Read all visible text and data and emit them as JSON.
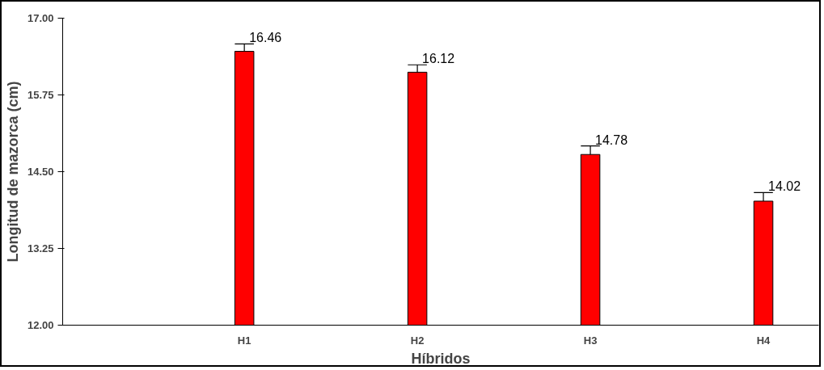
{
  "chart_data": {
    "type": "bar",
    "xlabel": "Híbridos",
    "ylabel": "Longitud de mazorca (cm)",
    "categories": [
      "H1",
      "H2",
      "H3",
      "H4"
    ],
    "values": [
      16.46,
      16.12,
      14.78,
      14.02
    ],
    "errors": [
      [
        16.46,
        16.58
      ],
      [
        16.12,
        16.24
      ],
      [
        14.78,
        14.92
      ],
      [
        14.02,
        14.16
      ]
    ],
    "color": "#ff0000",
    "ylim": [
      12,
      17
    ],
    "yticks": [
      {
        "value": 12,
        "label": "12.00"
      },
      {
        "value": 13.25,
        "label": "13.25"
      },
      {
        "value": 14.5,
        "label": "14.50"
      },
      {
        "value": 15.75,
        "label": "15.75"
      },
      {
        "value": 17,
        "label": "17.00"
      }
    ],
    "data_labels": true,
    "grid": false
  }
}
